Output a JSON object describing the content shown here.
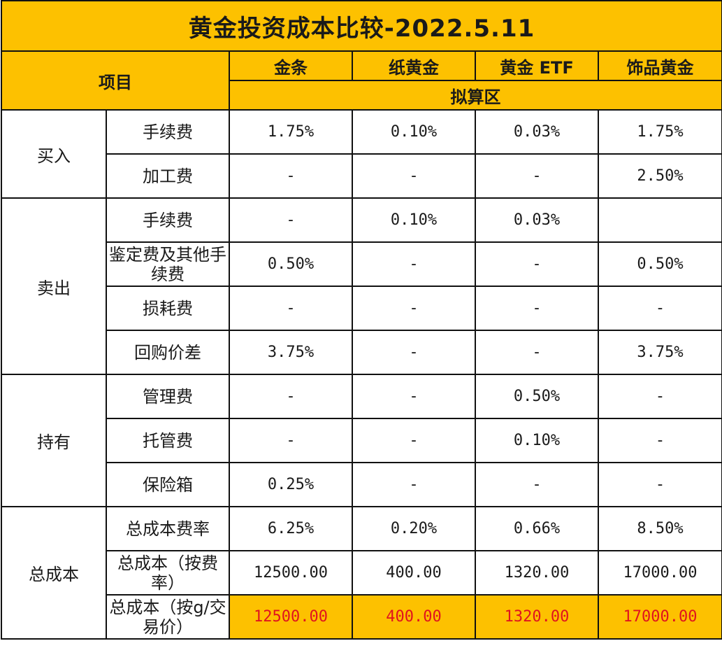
{
  "title": "黄金投资成本比较-2022.5.11",
  "header": {
    "item_label": "项目",
    "columns": [
      "金条",
      "纸黄金",
      "黄金 ETF",
      "饰品黄金"
    ],
    "subheader": "拟算区"
  },
  "groups": {
    "buy": "买入",
    "sell": "卖出",
    "hold": "持有",
    "total": "总成本"
  },
  "rows": [
    {
      "item": "手续费",
      "values": [
        "1.75%",
        "0.10%",
        "0.03%",
        "1.75%"
      ]
    },
    {
      "item": "加工费",
      "values": [
        "-",
        "-",
        "-",
        "2.50%"
      ]
    },
    {
      "item": "手续费",
      "values": [
        "-",
        "0.10%",
        "0.03%",
        ""
      ]
    },
    {
      "item": "鉴定费及其他手续费",
      "values": [
        "0.50%",
        "-",
        "-",
        "0.50%"
      ]
    },
    {
      "item": "损耗费",
      "values": [
        "-",
        "-",
        "-",
        "-"
      ]
    },
    {
      "item": "回购价差",
      "values": [
        "3.75%",
        "-",
        "-",
        "3.75%"
      ]
    },
    {
      "item": "管理费",
      "values": [
        "-",
        "-",
        "0.50%",
        "-"
      ]
    },
    {
      "item": "托管费",
      "values": [
        "-",
        "-",
        "0.10%",
        "-"
      ]
    },
    {
      "item": "保险箱",
      "values": [
        "0.25%",
        "-",
        "-",
        "-"
      ]
    },
    {
      "item": "总成本费率",
      "values": [
        "6.25%",
        "0.20%",
        "0.66%",
        "8.50%"
      ]
    },
    {
      "item": "总成本（按费率）",
      "values": [
        "12500.00",
        "400.00",
        "1320.00",
        "17000.00"
      ]
    },
    {
      "item": "总成本（按g/交易价）",
      "values": [
        "12500.00",
        "400.00",
        "1320.00",
        "17000.00"
      ]
    }
  ],
  "colors": {
    "header_bg": "#fdc100",
    "highlight_text": "#e0141e",
    "border": "#111111"
  }
}
